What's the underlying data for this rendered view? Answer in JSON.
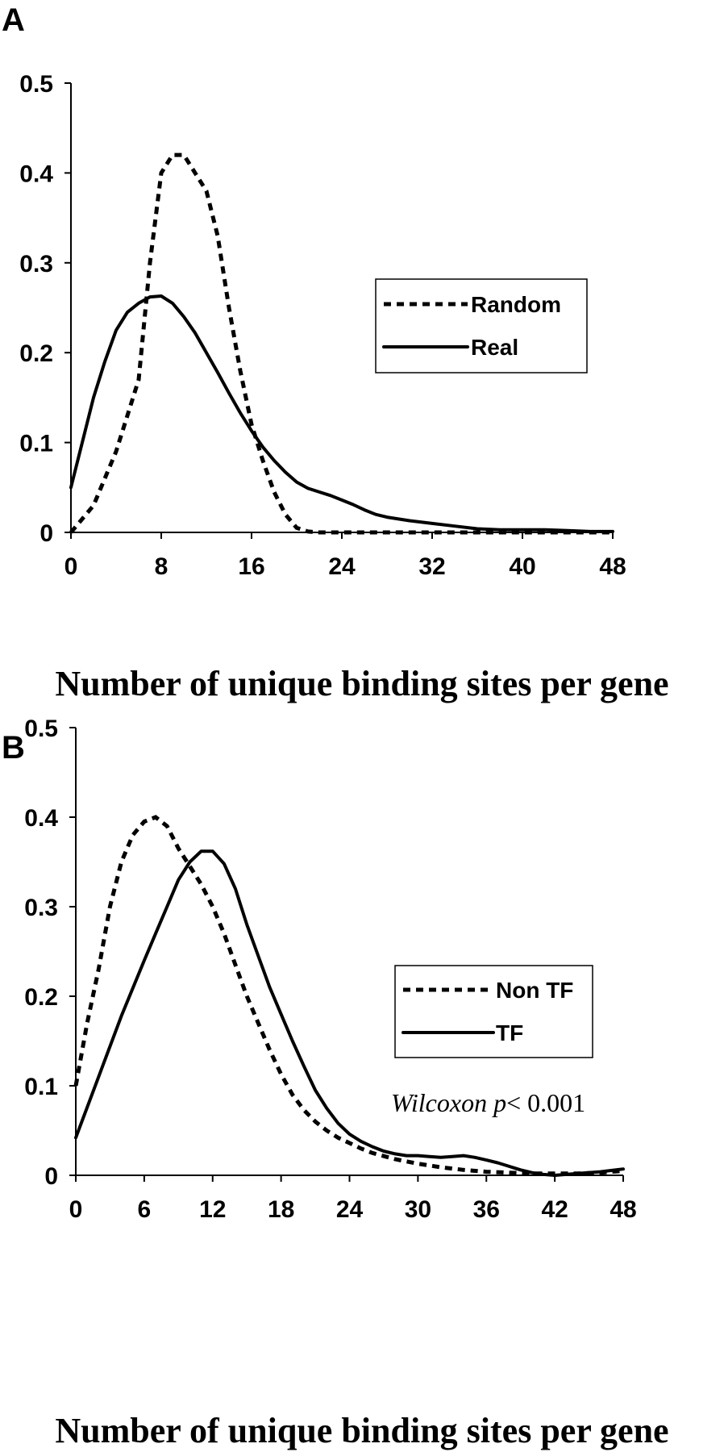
{
  "chart_data": [
    {
      "panel": "A",
      "type": "line",
      "xlabel": "Number of unique binding sites per gene",
      "ylabel": "",
      "xlim": [
        0,
        48
      ],
      "ylim": [
        0,
        0.5
      ],
      "xticks": [
        "0",
        "8",
        "16",
        "24",
        "32",
        "40",
        "48"
      ],
      "yticks": [
        "0",
        "0.1",
        "0.2",
        "0.3",
        "0.4",
        "0.5"
      ],
      "legend_position": "right-middle",
      "series": [
        {
          "name": "Random",
          "style": "dashed",
          "x": [
            0,
            2,
            4,
            6,
            7,
            8,
            9,
            10,
            11,
            12,
            13,
            14,
            15,
            16,
            17,
            18,
            19,
            20,
            21,
            22,
            24,
            28,
            32,
            36,
            40,
            44,
            48
          ],
          "y": [
            0,
            0.03,
            0.09,
            0.17,
            0.3,
            0.4,
            0.42,
            0.42,
            0.4,
            0.38,
            0.33,
            0.25,
            0.18,
            0.12,
            0.08,
            0.045,
            0.02,
            0.005,
            0.001,
            0,
            0,
            0,
            0,
            0,
            0,
            0,
            0
          ]
        },
        {
          "name": "Real",
          "style": "solid",
          "x": [
            0,
            1,
            2,
            3,
            4,
            5,
            6,
            7,
            8,
            9,
            10,
            11,
            12,
            13,
            14,
            15,
            16,
            17,
            18,
            19,
            20,
            21,
            22,
            23,
            24,
            25,
            26,
            27,
            28,
            30,
            32,
            34,
            36,
            38,
            40,
            42,
            44,
            46,
            48
          ],
          "y": [
            0.05,
            0.1,
            0.15,
            0.19,
            0.225,
            0.245,
            0.255,
            0.262,
            0.263,
            0.255,
            0.24,
            0.222,
            0.2,
            0.178,
            0.155,
            0.133,
            0.113,
            0.095,
            0.08,
            0.067,
            0.056,
            0.049,
            0.045,
            0.041,
            0.036,
            0.031,
            0.025,
            0.02,
            0.017,
            0.013,
            0.01,
            0.007,
            0.004,
            0.003,
            0.003,
            0.003,
            0.002,
            0.001,
            0.001
          ]
        }
      ]
    },
    {
      "panel": "B",
      "type": "line",
      "xlabel": "Number of unique binding sites per gene",
      "ylabel": "",
      "xlim": [
        0,
        48
      ],
      "ylim": [
        0,
        0.5
      ],
      "xticks": [
        "0",
        "6",
        "12",
        "18",
        "24",
        "30",
        "36",
        "42",
        "48"
      ],
      "yticks": [
        "0",
        "0.1",
        "0.2",
        "0.3",
        "0.4",
        "0.5"
      ],
      "legend_position": "right-middle",
      "annotation": "Wilcoxon p <  0.001",
      "series": [
        {
          "name": "Non TF",
          "style": "dashed",
          "x": [
            0,
            1,
            2,
            3,
            4,
            5,
            6,
            7,
            8,
            9,
            10,
            11,
            12,
            13,
            14,
            15,
            16,
            17,
            18,
            19,
            20,
            21,
            22,
            23,
            24,
            25,
            26,
            28,
            30,
            32,
            34,
            36,
            38,
            40,
            42,
            44,
            46,
            48
          ],
          "y": [
            0.1,
            0.17,
            0.23,
            0.3,
            0.35,
            0.38,
            0.395,
            0.4,
            0.39,
            0.365,
            0.345,
            0.325,
            0.3,
            0.27,
            0.235,
            0.2,
            0.17,
            0.14,
            0.113,
            0.09,
            0.073,
            0.06,
            0.05,
            0.042,
            0.036,
            0.03,
            0.025,
            0.018,
            0.013,
            0.009,
            0.006,
            0.004,
            0.003,
            0.002,
            0.002,
            0.002,
            0.003,
            0.005
          ]
        },
        {
          "name": "TF",
          "style": "solid",
          "x": [
            0,
            2,
            4,
            6,
            7,
            8,
            9,
            10,
            11,
            12,
            13,
            14,
            15,
            16,
            17,
            18,
            19,
            20,
            21,
            22,
            23,
            24,
            25,
            26,
            27,
            28,
            29,
            30,
            31,
            32,
            33,
            34,
            35,
            36,
            37,
            38,
            39,
            40,
            41,
            42,
            44,
            46,
            48
          ],
          "y": [
            0.042,
            0.11,
            0.178,
            0.24,
            0.27,
            0.3,
            0.33,
            0.35,
            0.362,
            0.362,
            0.348,
            0.32,
            0.28,
            0.245,
            0.21,
            0.18,
            0.15,
            0.122,
            0.095,
            0.075,
            0.058,
            0.046,
            0.038,
            0.032,
            0.027,
            0.024,
            0.022,
            0.022,
            0.021,
            0.02,
            0.021,
            0.022,
            0.02,
            0.017,
            0.014,
            0.01,
            0.006,
            0.003,
            0.001,
            0,
            0.002,
            0.004,
            0.007
          ]
        }
      ]
    }
  ]
}
